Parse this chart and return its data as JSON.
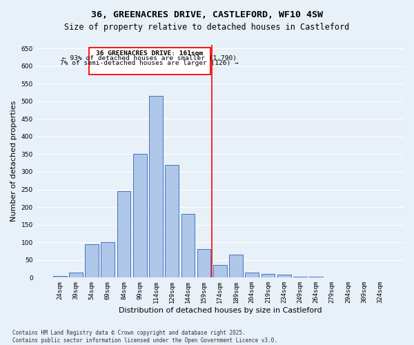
{
  "title": "36, GREENACRES DRIVE, CASTLEFORD, WF10 4SW",
  "subtitle": "Size of property relative to detached houses in Castleford",
  "xlabel": "Distribution of detached houses by size in Castleford",
  "ylabel": "Number of detached properties",
  "categories": [
    "24sqm",
    "39sqm",
    "54sqm",
    "69sqm",
    "84sqm",
    "99sqm",
    "114sqm",
    "129sqm",
    "144sqm",
    "159sqm",
    "174sqm",
    "189sqm",
    "204sqm",
    "219sqm",
    "234sqm",
    "249sqm",
    "264sqm",
    "279sqm",
    "294sqm",
    "309sqm",
    "324sqm"
  ],
  "values": [
    5,
    15,
    95,
    100,
    245,
    350,
    515,
    320,
    180,
    80,
    35,
    65,
    15,
    10,
    8,
    2,
    2,
    1,
    0,
    1,
    1
  ],
  "bar_color": "#aec6e8",
  "bar_edge_color": "#4472c4",
  "background_color": "#e8f0f8",
  "grid_color": "#ffffff",
  "annotation_title": "36 GREENACRES DRIVE: 161sqm",
  "annotation_line1": "← 93% of detached houses are smaller (1,790)",
  "annotation_line2": "7% of semi-detached houses are larger (126) →",
  "vline_color": "red",
  "annotation_box_color": "red",
  "footer1": "Contains HM Land Registry data © Crown copyright and database right 2025.",
  "footer2": "Contains public sector information licensed under the Open Government Licence v3.0.",
  "ylim": [
    0,
    660
  ],
  "yticks": [
    0,
    50,
    100,
    150,
    200,
    250,
    300,
    350,
    400,
    450,
    500,
    550,
    600,
    650
  ],
  "title_fontsize": 9.5,
  "subtitle_fontsize": 8.5,
  "tick_fontsize": 6.5,
  "ylabel_fontsize": 8,
  "xlabel_fontsize": 8,
  "annotation_fontsize": 6.8,
  "footer_fontsize": 5.5
}
